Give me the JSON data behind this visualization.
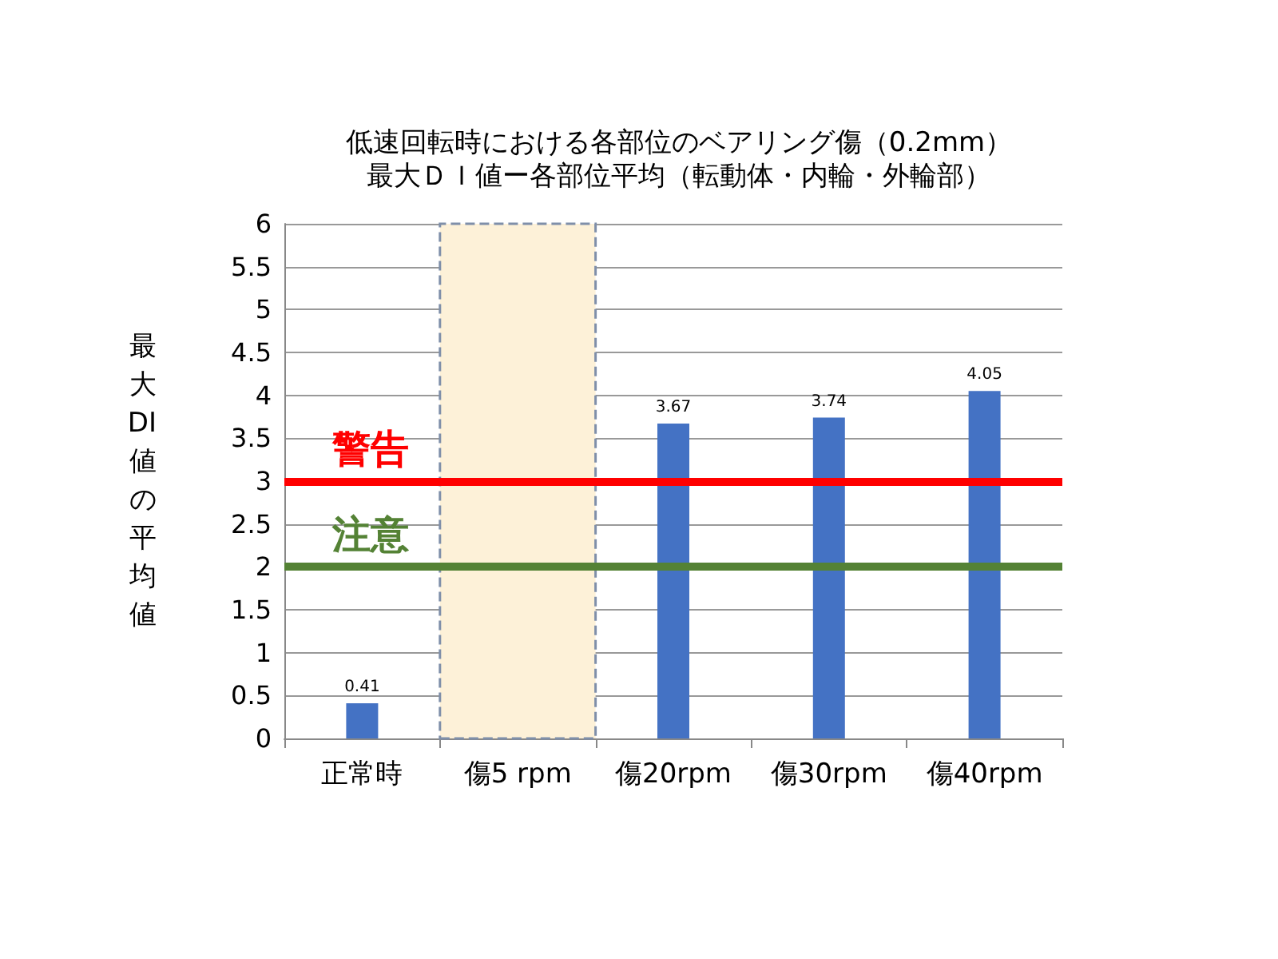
{
  "chart_data": {
    "type": "bar",
    "title": "低速回転時における各部位のベアリング傷（0.2mm）",
    "subtitle": "最大ＤＩ値ー各部位平均（転動体・内輪・外輪部）",
    "ylabel": "最大DI値の平均値",
    "categories": [
      "正常時",
      "傷5 rpm",
      "傷20rpm",
      "傷30rpm",
      "傷40rpm"
    ],
    "values": [
      0.41,
      null,
      3.67,
      3.74,
      4.05
    ],
    "color": "#4472c4",
    "data_labels": true,
    "ylim": [
      0,
      6
    ],
    "yticks": [
      0,
      0.5,
      1,
      1.5,
      2,
      2.5,
      3,
      3.5,
      4,
      4.5,
      5,
      5.5,
      6
    ],
    "grid": "y",
    "ref_lines": [
      {
        "axis": "y",
        "value": 3,
        "label": "警告",
        "color": "#ff0000"
      },
      {
        "axis": "y",
        "value": 2,
        "label": "注意",
        "color": "#548235"
      }
    ],
    "bands": [
      {
        "axis": "x",
        "from": "傷5 rpm",
        "to": "傷5 rpm",
        "color": "#fdf1d8"
      }
    ]
  }
}
